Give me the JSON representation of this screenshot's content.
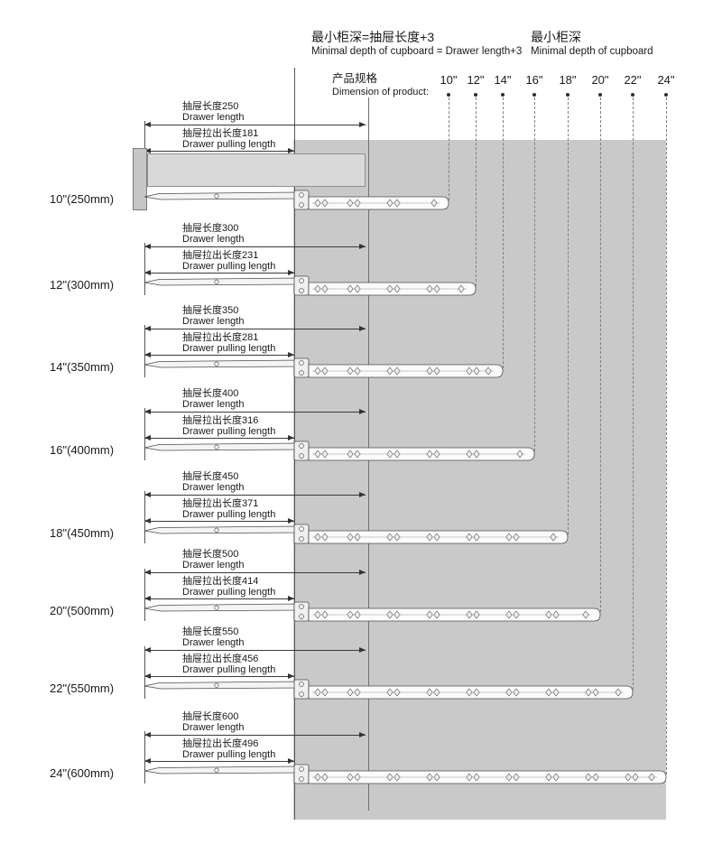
{
  "header": {
    "note_formula_cn": "最小柜深=抽屉长度+3",
    "note_formula_en": "Minimal depth of cupboard = Drawer length+3",
    "note_depth_cn": "最小柜深",
    "note_depth_en": "Minimal depth of cupboard",
    "dimension_cn": "产品规格",
    "dimension_en": "Dimension of product:"
  },
  "labels": {
    "drawer_length_cn": "抽屉长度",
    "drawer_length_en": "Drawer length",
    "pulling_length_cn": "抽屉拉出长度",
    "pulling_length_en": "Drawer pulling length"
  },
  "columns": [
    "10\"",
    "12\"",
    "14\"",
    "16\"",
    "18\"",
    "20\"",
    "22\"",
    "24\""
  ],
  "rows": [
    {
      "size_label": "10\"(250mm)",
      "inch": 10,
      "drawer_length": 250,
      "pulling_length": 181
    },
    {
      "size_label": "12\"(300mm)",
      "inch": 12,
      "drawer_length": 300,
      "pulling_length": 231
    },
    {
      "size_label": "14\"(350mm)",
      "inch": 14,
      "drawer_length": 350,
      "pulling_length": 281
    },
    {
      "size_label": "16\"(400mm)",
      "inch": 16,
      "drawer_length": 400,
      "pulling_length": 316
    },
    {
      "size_label": "18\"(450mm)",
      "inch": 18,
      "drawer_length": 450,
      "pulling_length": 371
    },
    {
      "size_label": "20\"(500mm)",
      "inch": 20,
      "drawer_length": 500,
      "pulling_length": 414
    },
    {
      "size_label": "22\"(550mm)",
      "inch": 22,
      "drawer_length": 550,
      "pulling_length": 456
    },
    {
      "size_label": "24\"(600mm)",
      "inch": 24,
      "drawer_length": 600,
      "pulling_length": 496
    }
  ],
  "colors": {
    "cupboard_region": "#c9c9c9",
    "outline": "#4d4d4d",
    "dashed_guide": "#7f7f7f",
    "text": "#1a1a1a",
    "drawer_body": "#d9d9d9",
    "drawer_front": "#c6c6c6"
  }
}
